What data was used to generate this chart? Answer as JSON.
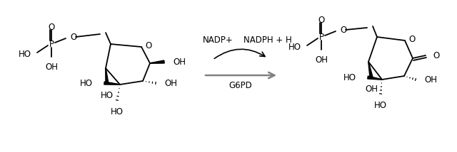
{
  "bg_color": "#ffffff",
  "fig_width": 6.4,
  "fig_height": 2.14,
  "dpi": 100,
  "line_color": "#000000",
  "nadp_label": "NADP+",
  "nadph_label": "NADPH + H",
  "g6pd_label": "G6PD",
  "font_size": 8.5
}
